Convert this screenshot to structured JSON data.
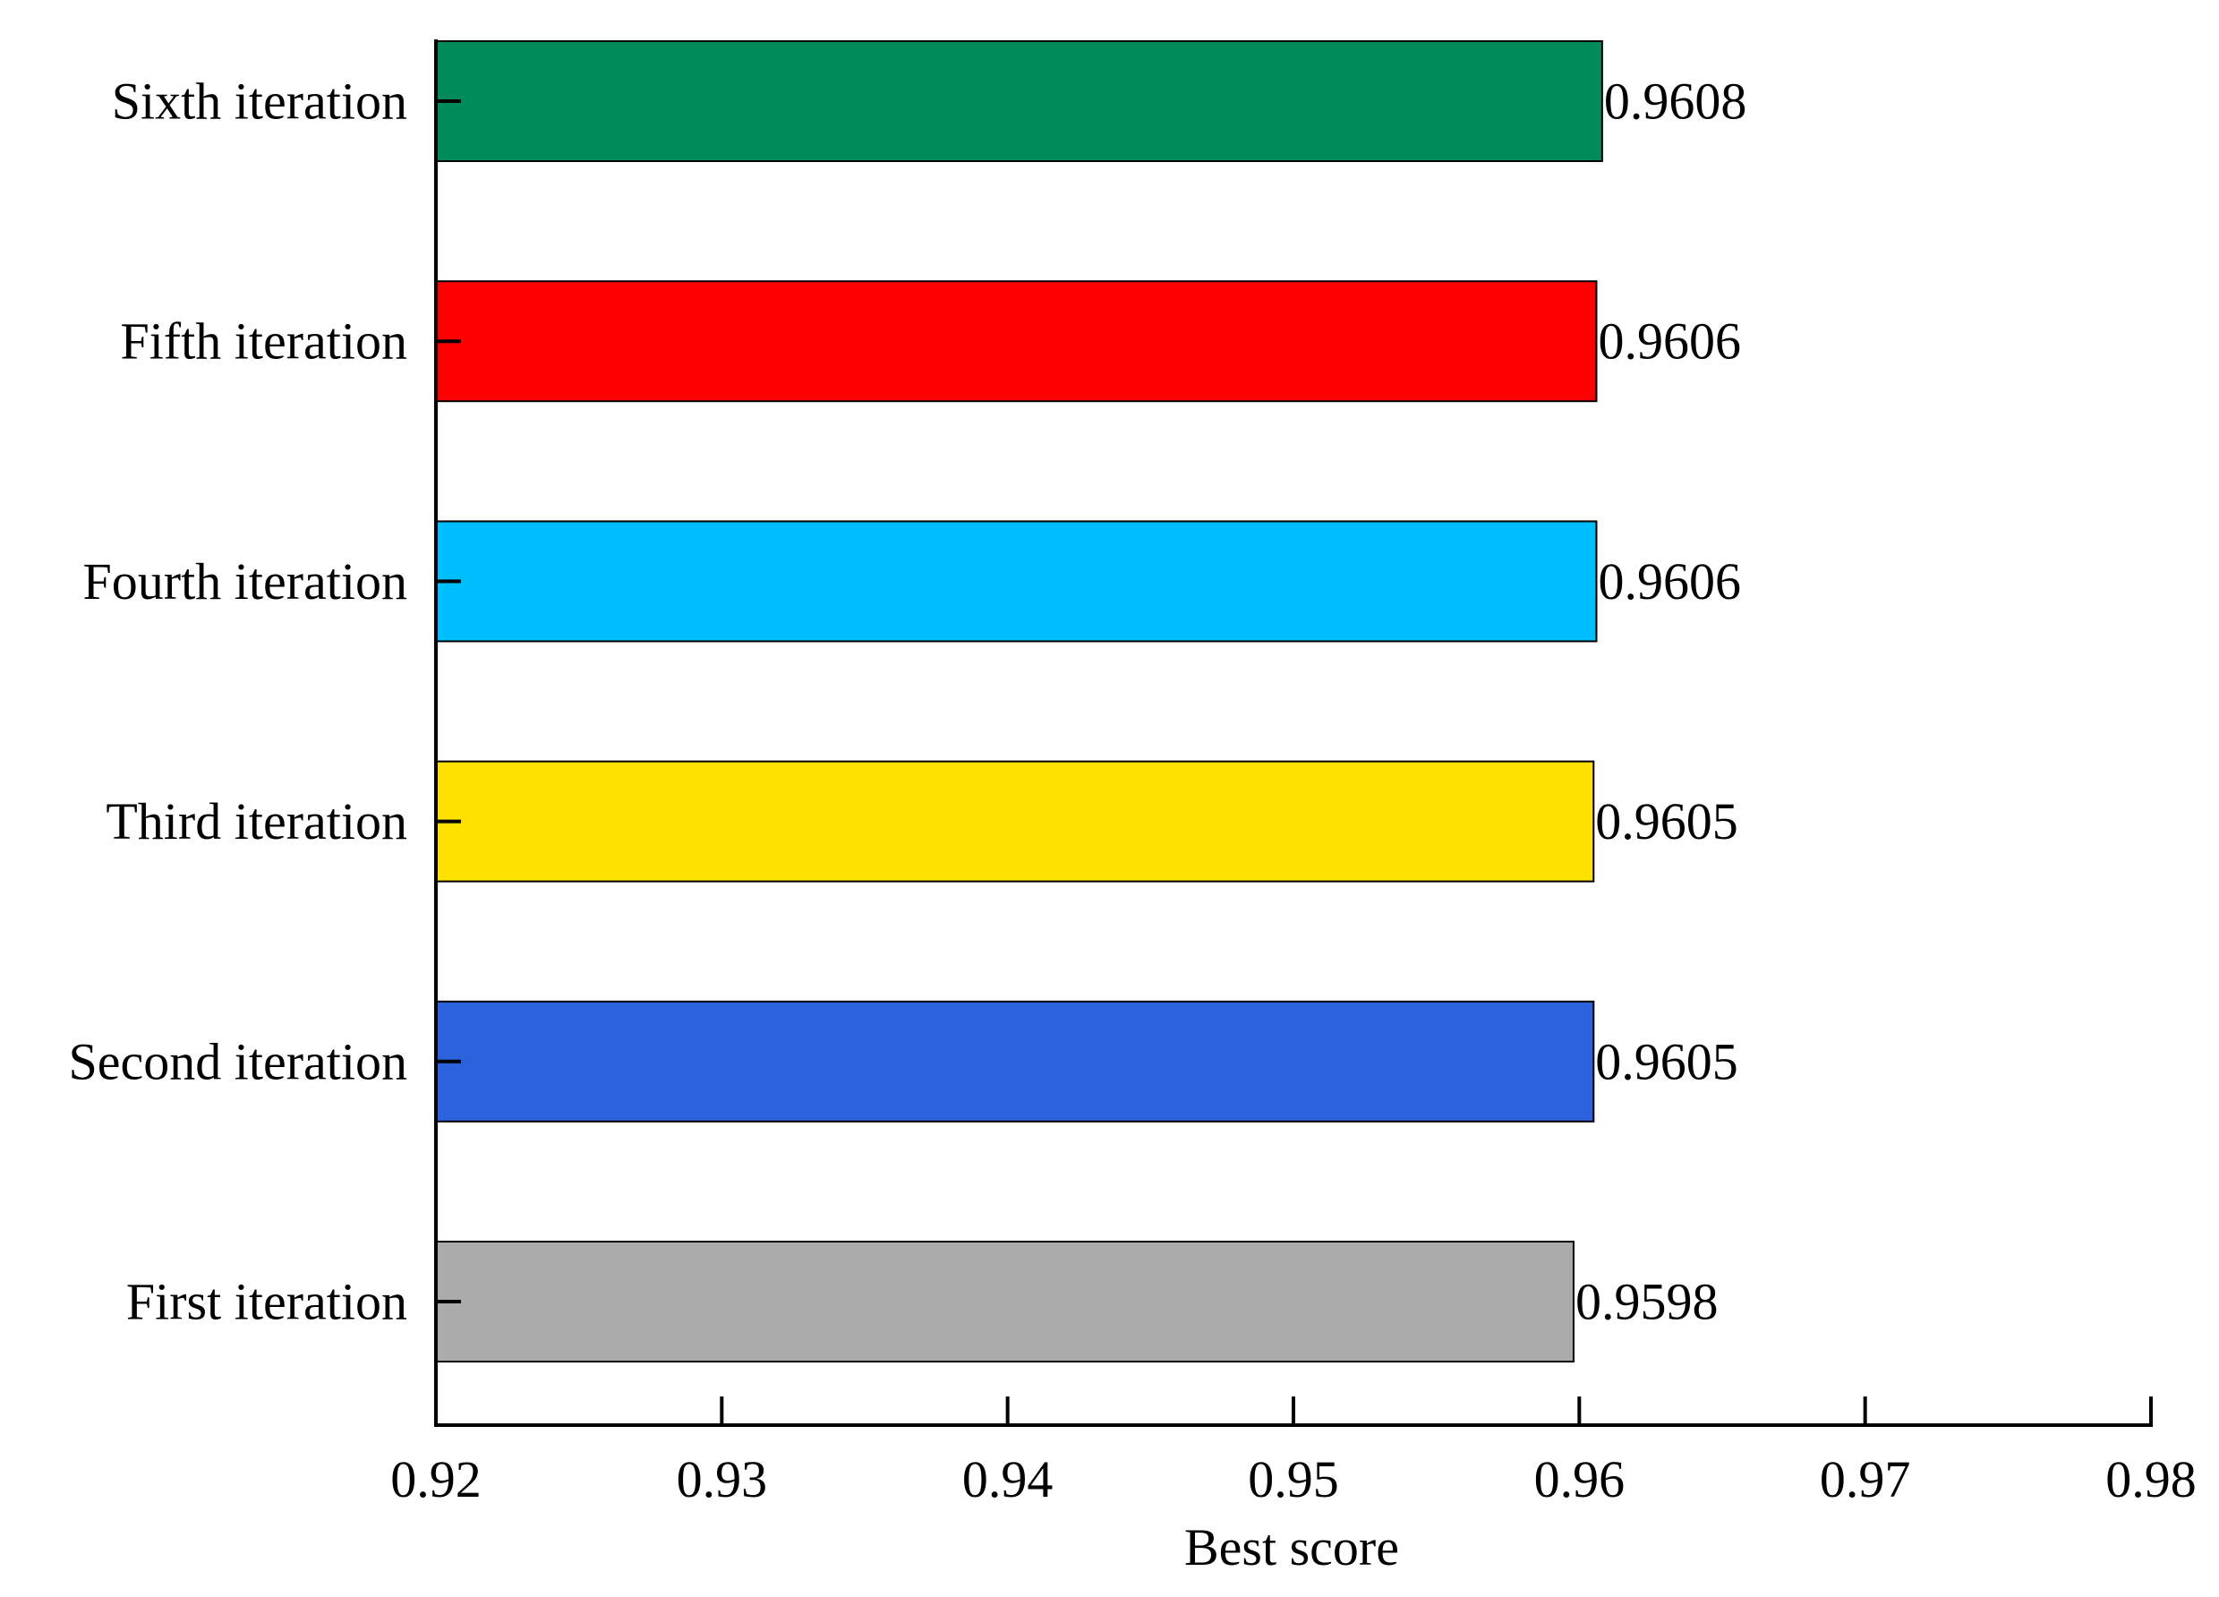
{
  "chart_data": {
    "type": "bar",
    "orientation": "horizontal",
    "categories": [
      "First iteration",
      "Second iteration",
      "Third iteration",
      "Fourth iteration",
      "Fifth iteration",
      "Sixth iteration"
    ],
    "values": [
      0.9598,
      0.9605,
      0.9605,
      0.9606,
      0.9606,
      0.9608
    ],
    "value_labels": [
      "0.9598",
      "0.9605",
      "0.9605",
      "0.9606",
      "0.9606",
      "0.9608"
    ],
    "bar_colors": [
      "#ABABAB",
      "#2B63DC",
      "#FFE100",
      "#00BFFF",
      "#FF0000",
      "#008B5A"
    ],
    "xlabel": "Best score",
    "ylabel": "",
    "title": "",
    "xlim": [
      0.92,
      0.98
    ],
    "xticks": [
      0.92,
      0.93,
      0.94,
      0.95,
      0.96,
      0.97,
      0.98
    ],
    "xtick_labels": [
      "0.92",
      "0.93",
      "0.94",
      "0.95",
      "0.96",
      "0.97",
      "0.98"
    ],
    "grid": false,
    "legend": "none"
  }
}
